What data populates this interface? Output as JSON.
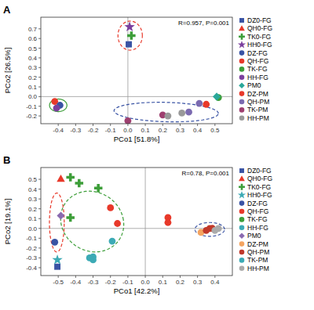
{
  "chart_data": [
    {
      "type": "scatter",
      "title": "A",
      "x_label": "PCo1 [51.8%]",
      "y_label": "PCo2 [26.5%]",
      "annotation": "R=0.957, P=0.001",
      "xlim": [
        -0.5,
        0.6
      ],
      "ylim": [
        -0.28,
        0.82
      ],
      "xticks": [
        -0.4,
        -0.3,
        -0.2,
        -0.1,
        {
          "value": 0.0,
          "label": "0.0"
        },
        0.1,
        0.2,
        0.3,
        0.4,
        0.5
      ],
      "yticks": [
        -0.2,
        -0.1,
        {
          "value": 0.0,
          "label": "0.0"
        },
        0.1,
        0.2,
        0.3,
        0.4,
        0.5,
        0.6,
        0.7
      ],
      "grid": false,
      "legend": "right",
      "hlines": [
        0
      ],
      "vlines": [
        0
      ],
      "points": {
        "x": [
          0.005,
          0.02,
          0.01,
          -0.42,
          -0.39,
          -0.41,
          0.52,
          0.51,
          0.45,
          0.41,
          0.2,
          0.23,
          0.31,
          0.35,
          0.0
        ],
        "values": [
          0.54,
          0.63,
          0.72,
          -0.05,
          -0.09,
          -0.12,
          -0.01,
          0.0,
          -0.08,
          -0.07,
          -0.19,
          -0.2,
          -0.17,
          -0.16,
          -0.25
        ],
        "colors": [
          "#3953a4",
          "#3d9e39",
          "#7b3f9e",
          "#e8392a",
          "#3953a4",
          "#7b3f9e",
          "#3d9e39",
          "#2aa89a",
          "#e8392a",
          "#7b6ab0",
          "#9e3f6f",
          "#999999",
          "#999999",
          "#7b6ab0",
          "#9e3f6f"
        ],
        "markers": [
          "square",
          "plus",
          "star",
          "circle",
          "circle",
          "circle",
          "circle",
          "diamond",
          "circle",
          "circle",
          "circle",
          "circle",
          "circle",
          "circle",
          "circle"
        ]
      },
      "ellipses": [
        {
          "cx": 0.013,
          "cy": 0.63,
          "width": 0.14,
          "height": 0.3,
          "angle": 0,
          "color": "#e8392a",
          "line_style": "dashed"
        },
        {
          "cx": -0.4,
          "cy": -0.09,
          "width": 0.1,
          "height": 0.13,
          "angle": 0,
          "color": "#3d9e39",
          "line_style": "solid"
        },
        {
          "cx": 0.22,
          "cy": -0.16,
          "width": 0.6,
          "height": 0.2,
          "angle": -3,
          "color": "#3953a4",
          "line_style": "dashed"
        }
      ],
      "series": [
        {
          "name": "DZ0-FG",
          "marker": "square",
          "color": "#3953a4"
        },
        {
          "name": "QH0-FG",
          "marker": "triangle",
          "color": "#e8392a"
        },
        {
          "name": "TK0-FG",
          "marker": "plus",
          "color": "#3d9e39"
        },
        {
          "name": "HH0-FG",
          "marker": "star",
          "color": "#7b3f9e"
        },
        {
          "name": "DZ-FG",
          "marker": "circle",
          "color": "#3953a4"
        },
        {
          "name": "QH-FG",
          "marker": "circle",
          "color": "#e8392a"
        },
        {
          "name": "TK-FG",
          "marker": "circle",
          "color": "#3d9e39"
        },
        {
          "name": "HH-FG",
          "marker": "circle",
          "color": "#7b3f9e"
        },
        {
          "name": "PM0",
          "marker": "diamond",
          "color": "#2aa89a"
        },
        {
          "name": "DZ-PM",
          "marker": "circle",
          "color": "#e8392a"
        },
        {
          "name": "QH-PM",
          "marker": "circle",
          "color": "#7b6ab0"
        },
        {
          "name": "TK-PM",
          "marker": "circle",
          "color": "#9e3f6f"
        },
        {
          "name": "HH-PM",
          "marker": "circle",
          "color": "#999999"
        }
      ]
    },
    {
      "type": "scatter",
      "title": "B",
      "x_label": "PCo1 [42.2%]",
      "y_label": "PCo2 [19.1%]",
      "annotation": "R=0.78, P=0.001",
      "xlim": [
        -0.6,
        0.5
      ],
      "ylim": [
        -0.48,
        0.62
      ],
      "xticks": [
        -0.5,
        -0.4,
        -0.3,
        -0.2,
        -0.1,
        {
          "value": 0.0,
          "label": "0.0"
        },
        0.1,
        0.2,
        0.3,
        0.4
      ],
      "yticks": [
        -0.4,
        -0.3,
        -0.2,
        -0.1,
        {
          "value": 0.0,
          "label": "0.0"
        },
        0.1,
        0.2,
        0.3,
        0.4,
        0.5
      ],
      "grid": false,
      "legend": "right",
      "hlines": [
        0
      ],
      "vlines": [
        0
      ],
      "points": {
        "x": [
          -0.505,
          -0.485,
          -0.43,
          -0.38,
          -0.27,
          -0.505,
          -0.52,
          -0.485,
          -0.43,
          -0.2,
          -0.16,
          -0.3,
          -0.32,
          -0.3,
          -0.19,
          0.13,
          0.13,
          0.32,
          0.35,
          0.37,
          0.385,
          0.4,
          0.42
        ],
        "values": [
          -0.39,
          0.505,
          0.52,
          0.46,
          0.41,
          -0.32,
          -0.14,
          0.13,
          0.11,
          0.21,
          0.05,
          -0.29,
          -0.3,
          -0.32,
          -0.13,
          0.11,
          0.06,
          -0.04,
          -0.02,
          0.0,
          0.0,
          -0.02,
          0.0
        ],
        "colors": [
          "#3953a4",
          "#e8392a",
          "#3d9e39",
          "#3d9e39",
          "#3d9e39",
          "#3caab5",
          "#3953a4",
          "#8a6ab0",
          "#3d9e39",
          "#e8392a",
          "#e8392a",
          "#3caab5",
          "#3caab5",
          "#3caab5",
          "#3caab5",
          "#e8392a",
          "#e8392a",
          "#f4a460",
          "#c0392b",
          "#c0392b",
          "#c0392b",
          "#aaaaaa",
          "#aaaaaa"
        ],
        "markers": [
          "square",
          "triangle",
          "plus",
          "plus",
          "plus",
          "star",
          "circle",
          "diamond",
          "plus",
          "circle",
          "circle",
          "circle",
          "circle",
          "circle",
          "circle",
          "circle",
          "circle",
          "circle",
          "circle",
          "circle",
          "circle",
          "circle",
          "circle"
        ]
      },
      "ellipses": [
        {
          "cx": -0.508,
          "cy": 0.06,
          "width": 0.085,
          "height": 0.6,
          "angle": 0,
          "color": "#e8392a",
          "line_style": "dashed"
        },
        {
          "cx": -0.305,
          "cy": 0.07,
          "width": 0.36,
          "height": 0.62,
          "angle": 5,
          "color": "#3d9e39",
          "line_style": "dashed"
        },
        {
          "cx": 0.37,
          "cy": -0.01,
          "width": 0.17,
          "height": 0.14,
          "angle": 0,
          "color": "#3953a4",
          "line_style": "dashed"
        }
      ],
      "series": [
        {
          "name": "DZ0-FG",
          "marker": "square",
          "color": "#3953a4"
        },
        {
          "name": "QH0-FG",
          "marker": "triangle",
          "color": "#e8392a"
        },
        {
          "name": "TK0-FG",
          "marker": "plus",
          "color": "#3d9e39"
        },
        {
          "name": "HH0-FG",
          "marker": "star",
          "color": "#3caab5"
        },
        {
          "name": "DZ-FG",
          "marker": "circle",
          "color": "#3953a4"
        },
        {
          "name": "QH-FG",
          "marker": "circle",
          "color": "#e8392a"
        },
        {
          "name": "TK-FG",
          "marker": "circle",
          "color": "#3d9e39"
        },
        {
          "name": "HH-FG",
          "marker": "circle",
          "color": "#3caab5"
        },
        {
          "name": "PM0",
          "marker": "diamond",
          "color": "#8a6ab0"
        },
        {
          "name": "DZ-PM",
          "marker": "circle",
          "color": "#f4a460"
        },
        {
          "name": "QH-PM",
          "marker": "circle",
          "color": "#c0392b"
        },
        {
          "name": "TK-PM",
          "marker": "circle",
          "color": "#3caab5"
        },
        {
          "name": "HH-PM",
          "marker": "circle",
          "color": "#aaaaaa"
        }
      ]
    }
  ]
}
